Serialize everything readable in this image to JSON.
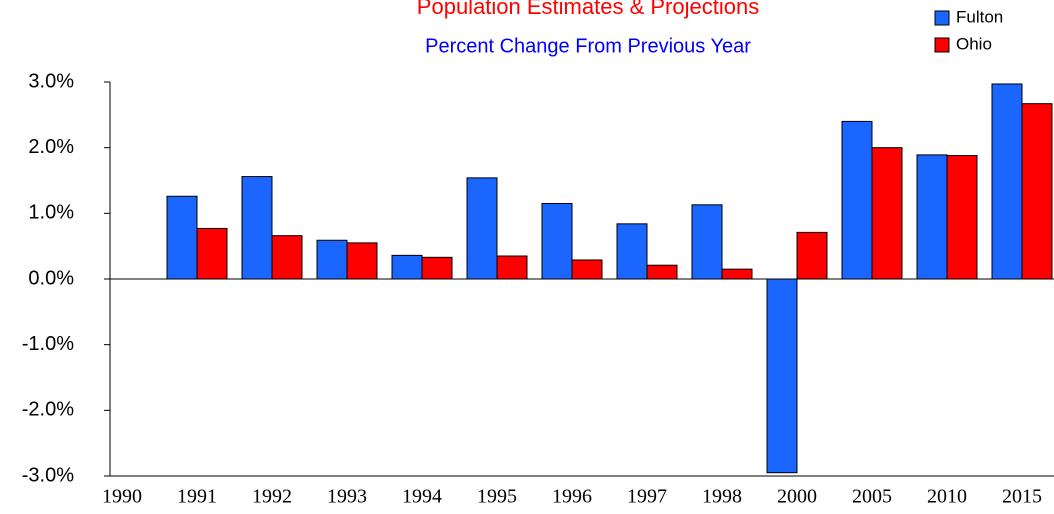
{
  "chart_data": {
    "type": "bar",
    "title": "Population Estimates & Projections",
    "subtitle": "Percent Change From Previous Year",
    "categories": [
      "1990",
      "1991",
      "1992",
      "1993",
      "1994",
      "1995",
      "1996",
      "1997",
      "1998",
      "2000",
      "2005",
      "2010",
      "2015"
    ],
    "series": [
      {
        "name": "Fulton",
        "color": "#1a66ff",
        "values": [
          null,
          1.26,
          1.56,
          0.59,
          0.36,
          1.54,
          1.15,
          0.84,
          1.13,
          -2.95,
          2.4,
          1.89,
          2.97
        ]
      },
      {
        "name": "Ohio",
        "color": "#ff0000",
        "values": [
          null,
          0.77,
          0.66,
          0.55,
          0.33,
          0.35,
          0.29,
          0.21,
          0.15,
          0.71,
          2.0,
          1.88,
          2.67
        ]
      }
    ],
    "ylim": [
      -3,
      3
    ],
    "yticks": [
      {
        "value": -3,
        "label": "-3.0%"
      },
      {
        "value": -2,
        "label": "-2.0%"
      },
      {
        "value": -1,
        "label": "-1.0%"
      },
      {
        "value": 0,
        "label": "0.0%"
      },
      {
        "value": 1,
        "label": "1.0%"
      },
      {
        "value": 2,
        "label": "2.0%"
      },
      {
        "value": 3,
        "label": "3.0%"
      }
    ],
    "legend": "top-right"
  }
}
